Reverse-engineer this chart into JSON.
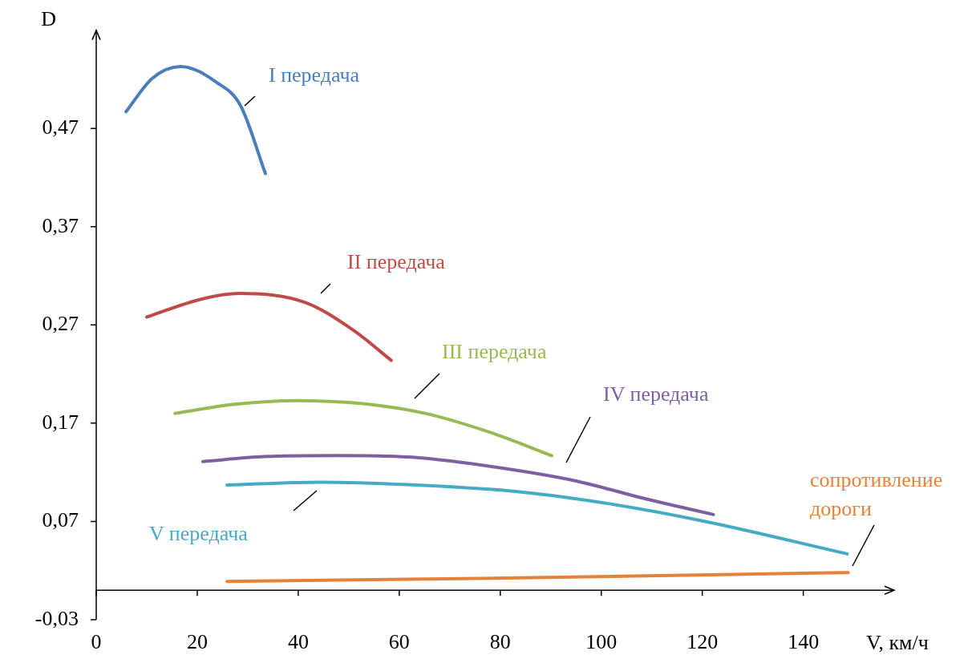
{
  "chart_data": {
    "type": "line",
    "xlabel": "V, км/ч",
    "ylabel": "D",
    "xlim": [
      0,
      158
    ],
    "ylim": [
      -0.03,
      0.57
    ],
    "xticks": [
      0,
      20,
      40,
      60,
      80,
      100,
      120,
      140
    ],
    "yticks": [
      {
        "value": -0.03,
        "label": "-0,03"
      },
      {
        "value": 0.07,
        "label": "0,07"
      },
      {
        "value": 0.17,
        "label": "0,17"
      },
      {
        "value": 0.27,
        "label": "0,27"
      },
      {
        "value": 0.37,
        "label": "0,37"
      },
      {
        "value": 0.47,
        "label": "0,47"
      }
    ],
    "grid": false,
    "legend": false,
    "marker": "none",
    "line_style": "solid",
    "series": [
      {
        "name": "I передача",
        "color": "#4a7ebb",
        "x": [
          5.9,
          11.1,
          16.7,
          23.8,
          28.6,
          33.5
        ],
        "values": [
          0.487,
          0.521,
          0.533,
          0.517,
          0.493,
          0.424
        ]
      },
      {
        "name": "II передача",
        "color": "#be4b48",
        "x": [
          10,
          20.6,
          28.3,
          41.3,
          50.8,
          58.4
        ],
        "values": [
          0.278,
          0.296,
          0.302,
          0.293,
          0.265,
          0.234
        ]
      },
      {
        "name": "III передача",
        "color": "#98b954",
        "x": [
          15.6,
          27,
          39.7,
          52.4,
          65.1,
          77.8,
          90.2
        ],
        "values": [
          0.18,
          0.189,
          0.193,
          0.19,
          0.18,
          0.161,
          0.137
        ]
      },
      {
        "name": "IV передача",
        "color": "#7d60a0",
        "x": [
          21.1,
          33.3,
          47.6,
          63.5,
          79.4,
          95.2,
          108,
          122.2
        ],
        "values": [
          0.131,
          0.136,
          0.137,
          0.135,
          0.125,
          0.111,
          0.094,
          0.077
        ]
      },
      {
        "name": "V передача",
        "color": "#46aac5",
        "x": [
          25.9,
          44.4,
          63.5,
          84.1,
          101.6,
          120.6,
          148.7
        ],
        "values": [
          0.107,
          0.11,
          0.107,
          0.1,
          0.088,
          0.07,
          0.037
        ]
      },
      {
        "name": "сопротивление\nдороги",
        "color": "#e5823a",
        "x": [
          25.9,
          76.2,
          148.9
        ],
        "values": [
          0.009,
          0.012,
          0.018
        ]
      }
    ]
  }
}
